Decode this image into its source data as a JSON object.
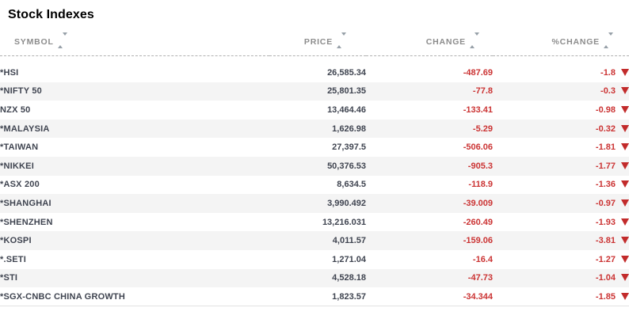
{
  "page": {
    "title": "Stock Indexes"
  },
  "colors": {
    "negative_red": "#cb3333",
    "triangle_red": "#c22b2b",
    "row_alt_gray": "#f4f4f4",
    "header_gray": "#8c8c8c",
    "text_dark": "#3f4450"
  },
  "icons": {
    "sort": "sort-up-down-icon",
    "down_arrow": "down-triangle-icon"
  },
  "table": {
    "columns": [
      {
        "key": "symbol",
        "label": "SYMBOL"
      },
      {
        "key": "price",
        "label": "PRICE"
      },
      {
        "key": "change",
        "label": "CHANGE"
      },
      {
        "key": "pct_change",
        "label": "%CHANGE"
      }
    ],
    "rows": [
      {
        "symbol": "*HSI",
        "price": "26,585.34",
        "change": "-487.69",
        "pct_change": "-1.8",
        "direction": "down"
      },
      {
        "symbol": "*NIFTY 50",
        "price": "25,801.35",
        "change": "-77.8",
        "pct_change": "-0.3",
        "direction": "down"
      },
      {
        "symbol": "NZX 50",
        "price": "13,464.46",
        "change": "-133.41",
        "pct_change": "-0.98",
        "direction": "down"
      },
      {
        "symbol": "*MALAYSIA",
        "price": "1,626.98",
        "change": "-5.29",
        "pct_change": "-0.32",
        "direction": "down"
      },
      {
        "symbol": "*TAIWAN",
        "price": "27,397.5",
        "change": "-506.06",
        "pct_change": "-1.81",
        "direction": "down"
      },
      {
        "symbol": "*NIKKEI",
        "price": "50,376.53",
        "change": "-905.3",
        "pct_change": "-1.77",
        "direction": "down"
      },
      {
        "symbol": "*ASX 200",
        "price": "8,634.5",
        "change": "-118.9",
        "pct_change": "-1.36",
        "direction": "down"
      },
      {
        "symbol": "*SHANGHAI",
        "price": "3,990.492",
        "change": "-39.009",
        "pct_change": "-0.97",
        "direction": "down"
      },
      {
        "symbol": "*SHENZHEN",
        "price": "13,216.031",
        "change": "-260.49",
        "pct_change": "-1.93",
        "direction": "down"
      },
      {
        "symbol": "*KOSPI",
        "price": "4,011.57",
        "change": "-159.06",
        "pct_change": "-3.81",
        "direction": "down"
      },
      {
        "symbol": "*.SETI",
        "price": "1,271.04",
        "change": "-16.4",
        "pct_change": "-1.27",
        "direction": "down"
      },
      {
        "symbol": "*STI",
        "price": "4,528.18",
        "change": "-47.73",
        "pct_change": "-1.04",
        "direction": "down"
      },
      {
        "symbol": "*SGX-CNBC CHINA GROWTH",
        "price": "1,823.57",
        "change": "-34.344",
        "pct_change": "-1.85",
        "direction": "down"
      }
    ]
  }
}
